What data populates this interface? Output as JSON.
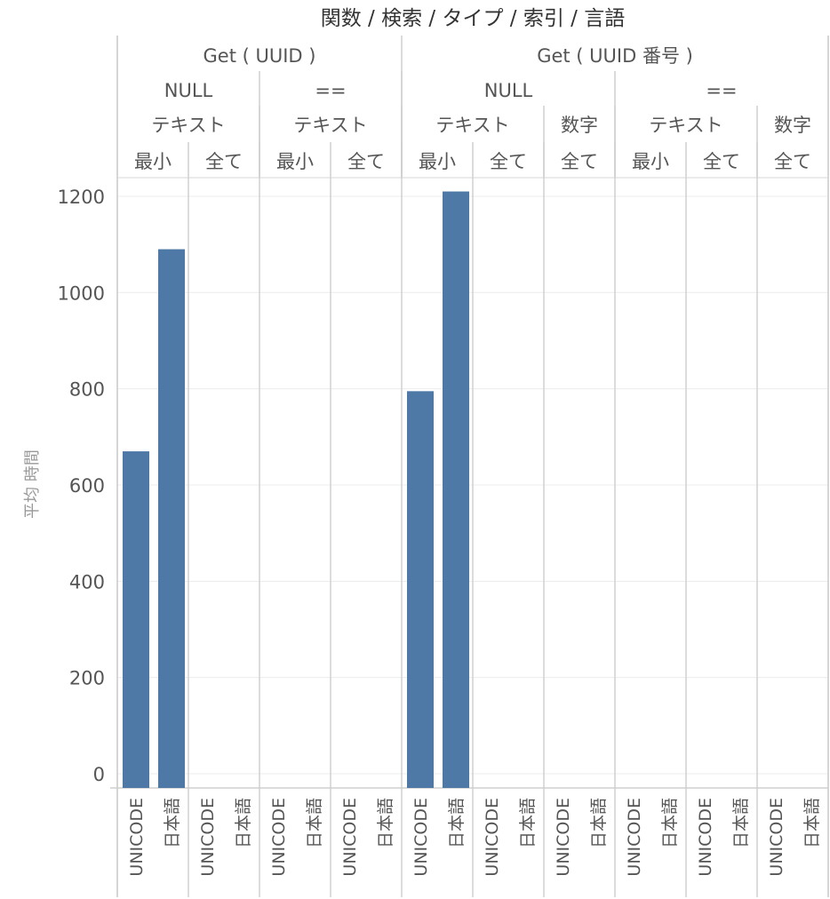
{
  "chart_data": {
    "type": "bar",
    "title": "関数 / 検索 / タイプ / 索引 / 言語",
    "ylabel": "平均 時間",
    "ylim": [
      0,
      1260
    ],
    "yticks": [
      0,
      200,
      400,
      600,
      800,
      1000,
      1200
    ],
    "bar_color": "#4e79a7",
    "grid": true,
    "header_levels": [
      [
        {
          "label": "Get ( UUID )",
          "span": 4
        },
        {
          "label": "Get ( UUID 番号 )",
          "span": 6
        }
      ],
      [
        {
          "label": "NULL",
          "span": 2
        },
        {
          "label": "==",
          "span": 2
        },
        {
          "label": "NULL",
          "span": 3
        },
        {
          "label": "==",
          "span": 3
        }
      ],
      [
        {
          "label": "テキスト",
          "span": 2
        },
        {
          "label": "テキスト",
          "span": 2
        },
        {
          "label": "テキスト",
          "span": 2
        },
        {
          "label": "数字",
          "span": 1
        },
        {
          "label": "テキスト",
          "span": 2
        },
        {
          "label": "数字",
          "span": 1
        }
      ],
      [
        {
          "label": "最小",
          "span": 1
        },
        {
          "label": "全て",
          "span": 1
        },
        {
          "label": "最小",
          "span": 1
        },
        {
          "label": "全て",
          "span": 1
        },
        {
          "label": "最小",
          "span": 1
        },
        {
          "label": "全て",
          "span": 1
        },
        {
          "label": "全て",
          "span": 1
        },
        {
          "label": "最小",
          "span": 1
        },
        {
          "label": "全て",
          "span": 1
        },
        {
          "label": "全て",
          "span": 1
        }
      ]
    ],
    "categories": [
      "UNICODE",
      "日本語"
    ],
    "panes": [
      {
        "values": [
          670,
          1090
        ]
      },
      {
        "values": [
          null,
          null
        ]
      },
      {
        "values": [
          null,
          null
        ]
      },
      {
        "values": [
          null,
          null
        ]
      },
      {
        "values": [
          795,
          1210
        ]
      },
      {
        "values": [
          null,
          null
        ]
      },
      {
        "values": [
          null,
          null
        ]
      },
      {
        "values": [
          null,
          null
        ]
      },
      {
        "values": [
          null,
          null
        ]
      },
      {
        "values": [
          null,
          null
        ]
      }
    ]
  }
}
